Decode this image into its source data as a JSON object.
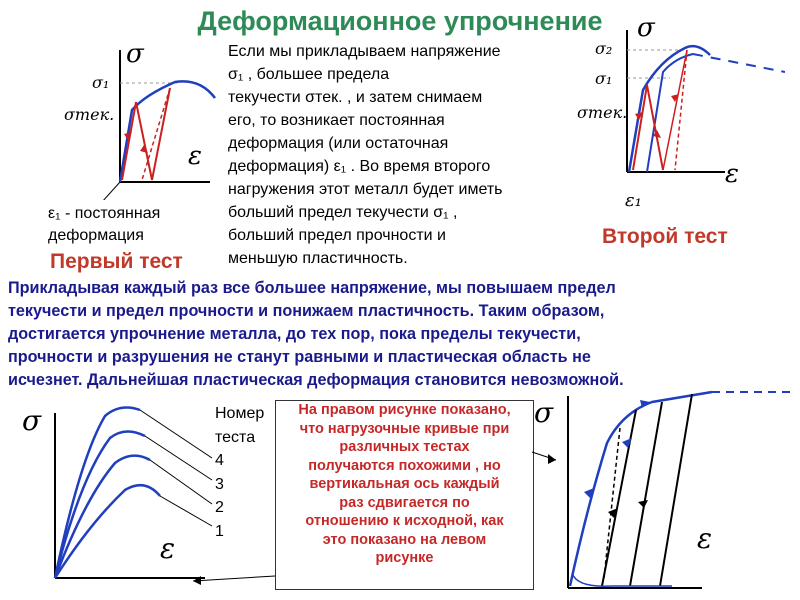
{
  "title": "Деформационное упрочнение",
  "explanation_lines": [
    "Если мы прикладываем напряжение",
    "σ₁  , большее предела",
    "текучести  σтек. , и затем снимаем",
    "его, то возникает постоянная",
    "деформация (или остаточная",
    "деформация)    ε₁ . Во время второго",
    "нагружения этот металл будет иметь",
    "больший предел  текучести   σ₁  ,",
    "больший предел прочности и",
    "меньшую пластичность."
  ],
  "first_test": {
    "caption_lines": [
      "ε₁ - постоянная",
      "деформация"
    ],
    "heading": "Первый тест",
    "labels": {
      "sigma": "σ",
      "sigma1": "σ₁",
      "sigma_tek": "σтек.",
      "epsilon": "ε"
    }
  },
  "second_test": {
    "heading": "Второй тест",
    "labels": {
      "sigma": "σ",
      "sigma2": "σ₂",
      "sigma1": "σ₁",
      "sigma_tek": "σтек.",
      "epsilon": "ε",
      "epsilon1": "ε₁"
    }
  },
  "conclusion_lines": [
    "Прикладывая каждый раз все большее напряжение, мы повышаем предел",
    "текучести и предел прочности и понижаем пластичность. Таким образом,",
    "достигается упрочнение металла, до тех пор, пока пределы текучести,",
    "прочности и разрушения не станут равными и пластическая область не",
    "исчезнет. Дальнейшая пластическая деформация становится невозможной."
  ],
  "bottom_left": {
    "labels": {
      "sigma": "σ",
      "epsilon": "ε"
    },
    "test_number_title": [
      "Номер",
      "теста"
    ],
    "test_numbers": [
      "4",
      "3",
      "2",
      "1"
    ]
  },
  "note_lines": [
    "На правом рисунке показано,",
    "что нагрузочные кривые при",
    "различных тестах",
    "получаются похожими , но",
    "вертикальная ось каждый",
    "раз сдвигается по",
    "отношению к исходной, как",
    "это показано на левом",
    "рисунке"
  ],
  "bottom_right": {
    "labels": {
      "sigma": "σ",
      "epsilon": "ε"
    }
  },
  "colors": {
    "title": "#2e8b57",
    "blue": "#1f3fbf",
    "red": "#cc1f1f",
    "navy": "#1a1a8c",
    "note_red": "#c62828"
  }
}
